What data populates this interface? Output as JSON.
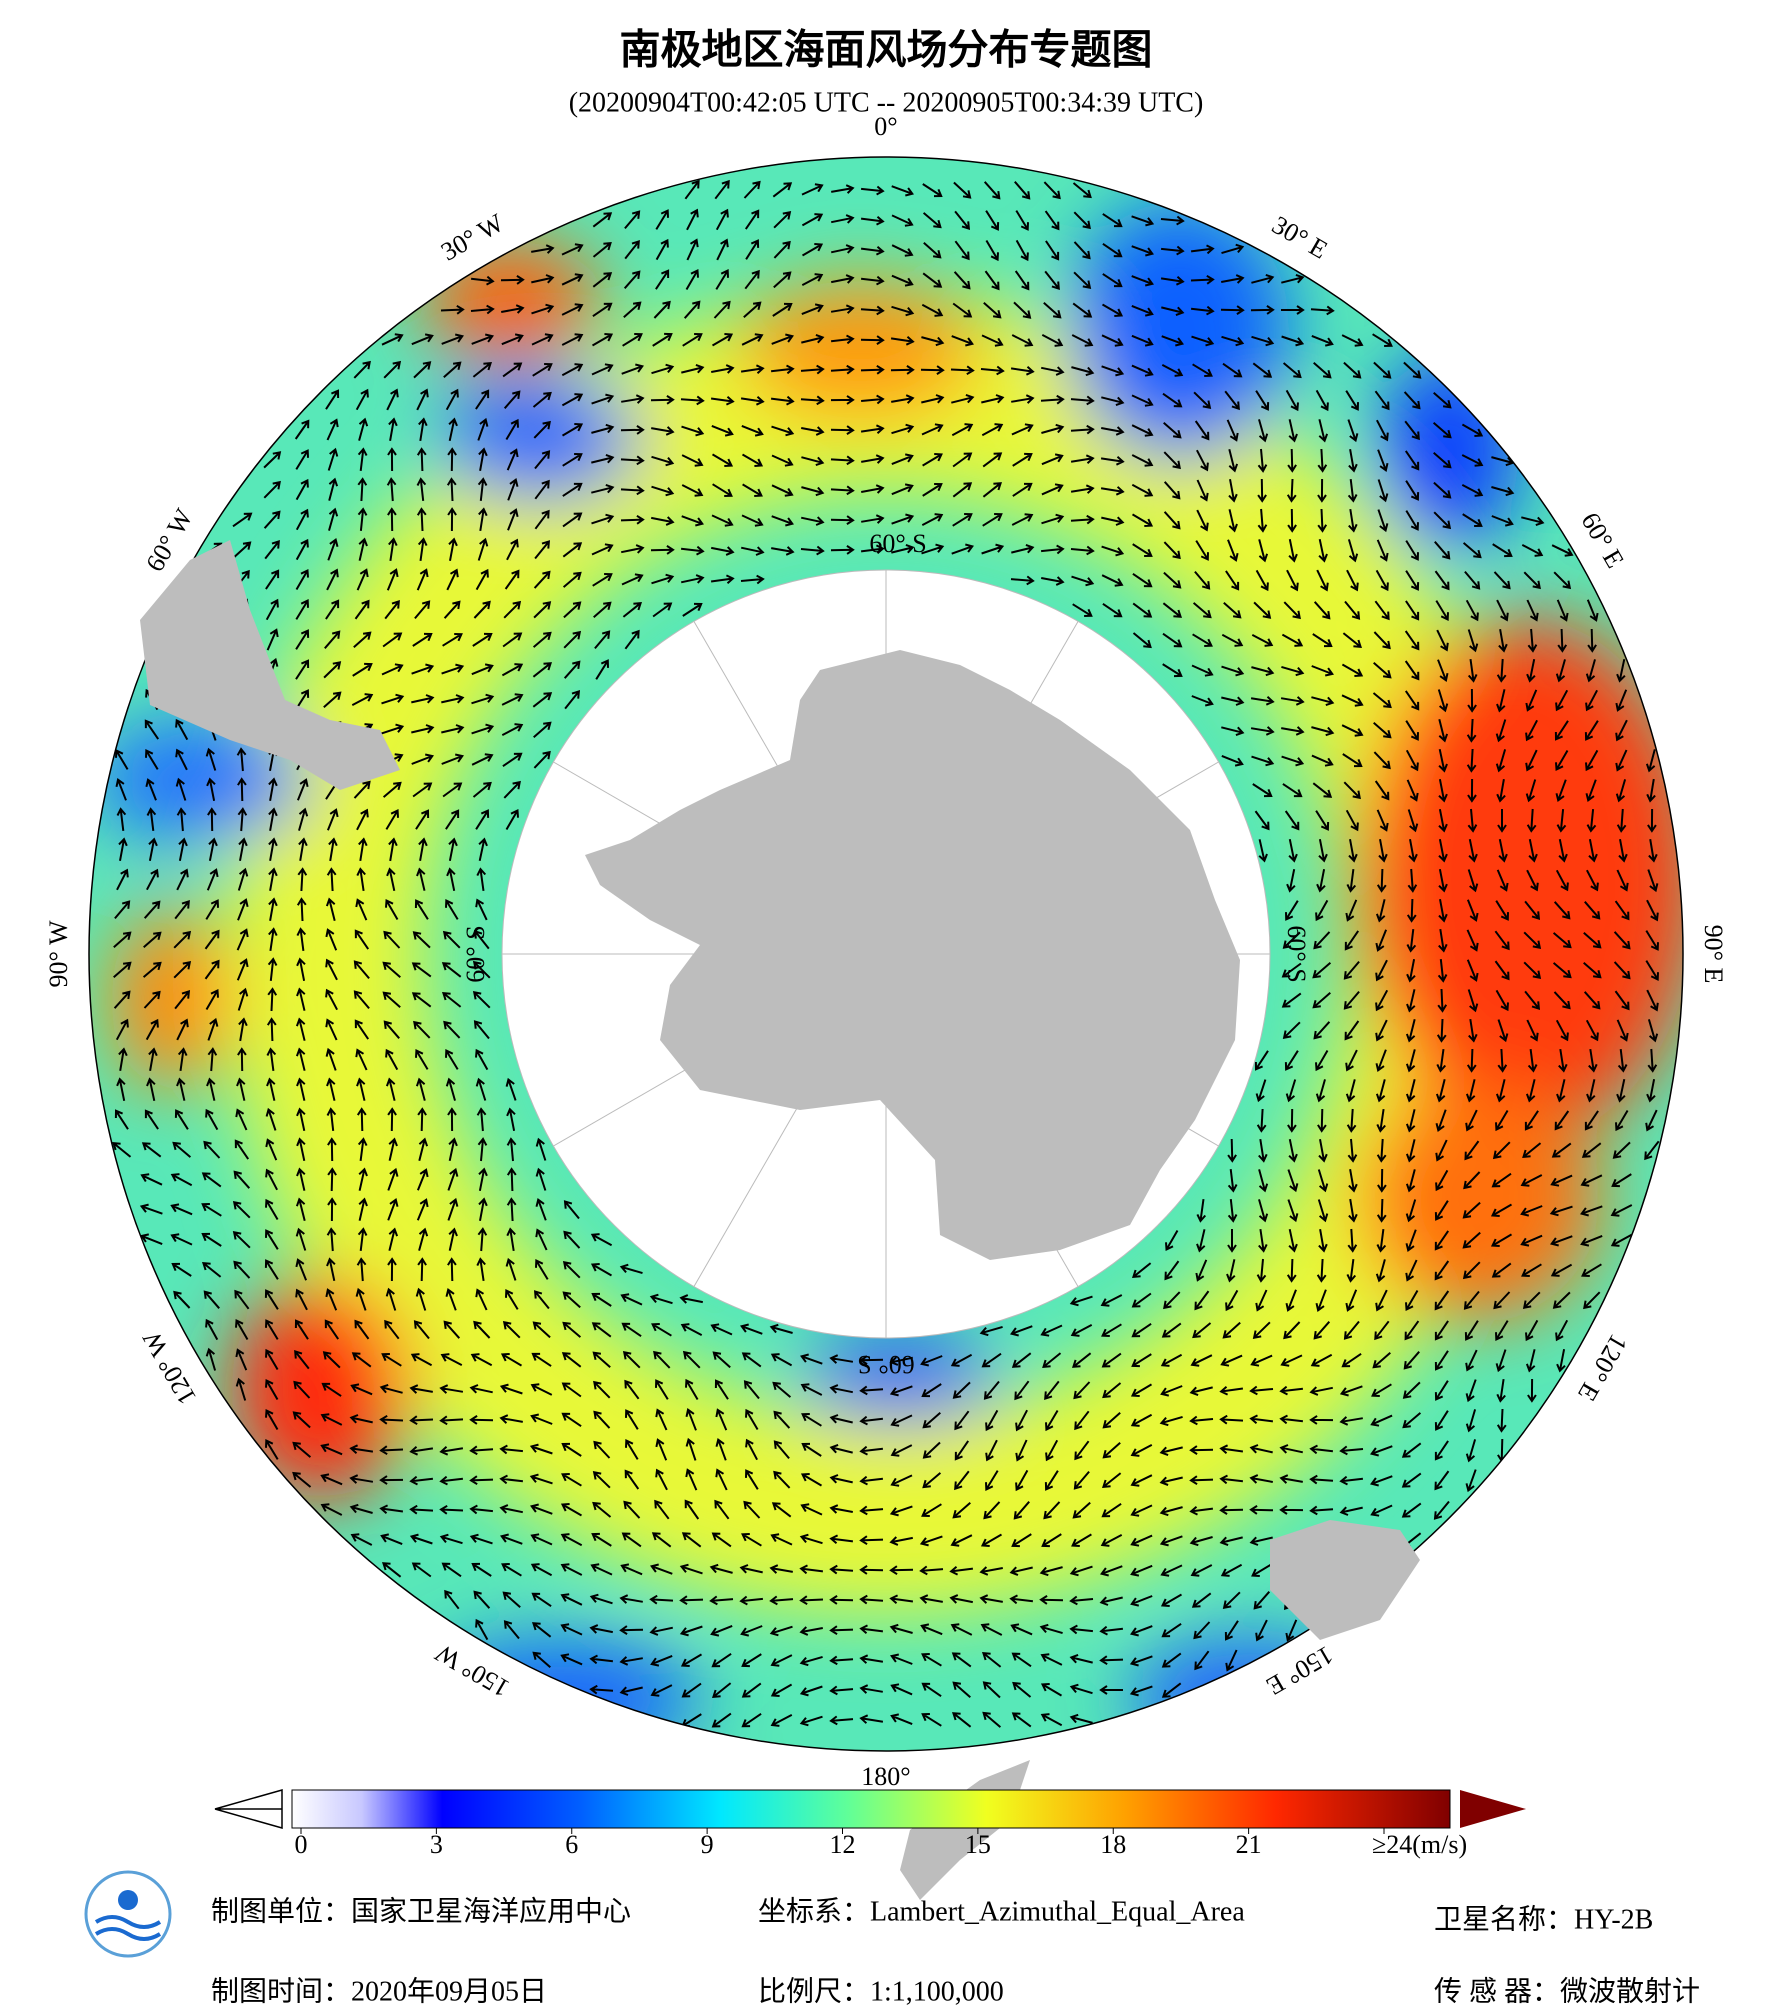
{
  "header": {
    "title": "南极地区海面风场分布专题图",
    "subtitle": "(20200904T00:42:05 UTC -- 20200905T00:34:39 UTC)"
  },
  "map": {
    "longitude_labels": [
      "0°",
      "30° E",
      "60° E",
      "90° E",
      "120° E",
      "150° E",
      "180°",
      "150° W",
      "120° W",
      "90° W",
      "60° W",
      "30° W"
    ],
    "latitude_labels": [
      "60° S",
      "60° S",
      "60° S",
      "60° S"
    ]
  },
  "colorbar": {
    "range": [
      0,
      24
    ],
    "ticks": [
      0,
      3,
      6,
      9,
      12,
      15,
      18,
      21,
      {
        "value": 24,
        "label": "≥24(m/s)"
      }
    ]
  },
  "footer": {
    "unit": "制图单位：国家卫星海洋应用中心",
    "time": "制图时间：2020年09月05日",
    "crs": "坐标系：Lambert_Azimuthal_Equal_Area",
    "scale": "比例尺：1:1,100,000",
    "satellite": "卫星名称：HY-2B",
    "sensor": "传 感 器：微波散射计"
  }
}
